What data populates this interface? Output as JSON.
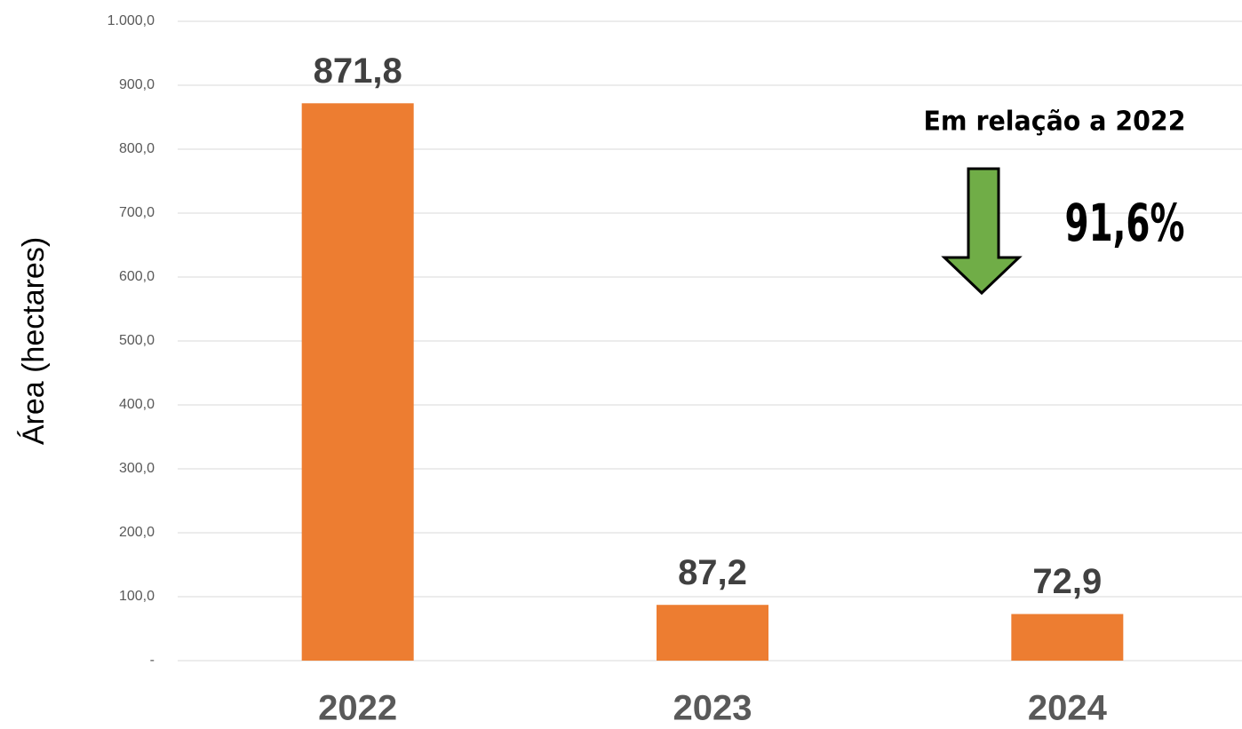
{
  "chart_data": {
    "type": "bar",
    "y_label": "Área (hectares)",
    "categories": [
      "2022",
      "2023",
      "2024"
    ],
    "values": [
      871.8,
      87.2,
      72.9
    ],
    "value_labels": [
      "871,8",
      "87,2",
      "72,9"
    ],
    "color": "#ed7d31",
    "ylim": [
      0,
      1000
    ],
    "yticks": [
      {
        "value": 0,
        "label": "-"
      },
      {
        "value": 100,
        "label": "100,0"
      },
      {
        "value": 200,
        "label": "200,0"
      },
      {
        "value": 300,
        "label": "300,0"
      },
      {
        "value": 400,
        "label": "400,0"
      },
      {
        "value": 500,
        "label": "500,0"
      },
      {
        "value": 600,
        "label": "600,0"
      },
      {
        "value": 700,
        "label": "700,0"
      },
      {
        "value": 800,
        "label": "800,0"
      },
      {
        "value": 900,
        "label": "900,0"
      },
      {
        "value": 1000,
        "label": "1.000,0"
      }
    ],
    "grid": true,
    "annotations": [
      "Em relação a 2022",
      "91,6%"
    ]
  }
}
